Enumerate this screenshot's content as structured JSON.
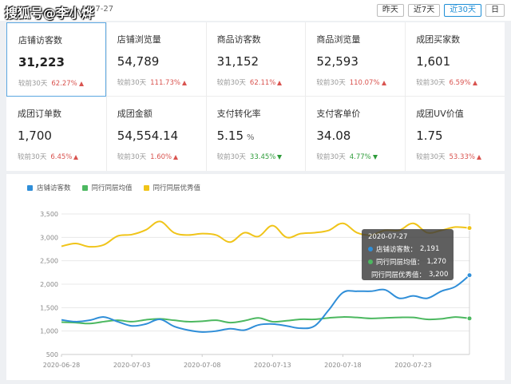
{
  "watermark": "搜狐号@李小烨",
  "header": {
    "date_fragment": "07-27",
    "range_buttons": [
      {
        "label": "昨天",
        "active": false
      },
      {
        "label": "近7天",
        "active": false
      },
      {
        "label": "近30天",
        "active": true
      },
      {
        "label": "日",
        "active": false
      }
    ]
  },
  "metrics": [
    {
      "label": "店铺访客数",
      "value": "31,223",
      "unit": "",
      "cmp_label": "较前30天",
      "pct": "62.27%",
      "dir": "up",
      "selected": true
    },
    {
      "label": "店铺浏览量",
      "value": "54,789",
      "unit": "",
      "cmp_label": "较前30天",
      "pct": "111.73%",
      "dir": "up"
    },
    {
      "label": "商品访客数",
      "value": "31,152",
      "unit": "",
      "cmp_label": "较前30天",
      "pct": "62.11%",
      "dir": "up"
    },
    {
      "label": "商品浏览量",
      "value": "52,593",
      "unit": "",
      "cmp_label": "较前30天",
      "pct": "110.07%",
      "dir": "up"
    },
    {
      "label": "成团买家数",
      "value": "1,601",
      "unit": "",
      "cmp_label": "较前30天",
      "pct": "6.59%",
      "dir": "up"
    },
    {
      "label": "成团订单数",
      "value": "1,700",
      "unit": "",
      "cmp_label": "较前30天",
      "pct": "6.45%",
      "dir": "up"
    },
    {
      "label": "成团金额",
      "value": "54,554.14",
      "unit": "",
      "cmp_label": "较前30天",
      "pct": "1.60%",
      "dir": "up"
    },
    {
      "label": "支付转化率",
      "value": "5.15",
      "unit": "%",
      "cmp_label": "较前30天",
      "pct": "33.45%",
      "dir": "down"
    },
    {
      "label": "支付客单价",
      "value": "34.08",
      "unit": "",
      "cmp_label": "较前30天",
      "pct": "4.77%",
      "dir": "down"
    },
    {
      "label": "成团UV价值",
      "value": "1.75",
      "unit": "",
      "cmp_label": "较前30天",
      "pct": "53.33%",
      "dir": "up"
    }
  ],
  "chart_data": {
    "type": "line",
    "x": [
      "2020-06-28",
      "2020-06-29",
      "2020-06-30",
      "2020-07-01",
      "2020-07-02",
      "2020-07-03",
      "2020-07-04",
      "2020-07-05",
      "2020-07-06",
      "2020-07-07",
      "2020-07-08",
      "2020-07-09",
      "2020-07-10",
      "2020-07-11",
      "2020-07-12",
      "2020-07-13",
      "2020-07-14",
      "2020-07-15",
      "2020-07-16",
      "2020-07-17",
      "2020-07-18",
      "2020-07-19",
      "2020-07-20",
      "2020-07-21",
      "2020-07-22",
      "2020-07-23",
      "2020-07-24",
      "2020-07-25",
      "2020-07-26",
      "2020-07-27"
    ],
    "x_ticks": [
      "2020-06-28",
      "2020-07-03",
      "2020-07-08",
      "2020-07-13",
      "2020-07-18",
      "2020-07-23"
    ],
    "y_ticks": [
      "500",
      "1,000",
      "1,500",
      "2,000",
      "2,500",
      "3,000",
      "3,500"
    ],
    "ylim": [
      500,
      3500
    ],
    "grid": true,
    "legend_position": "top-left",
    "series": [
      {
        "name": "店铺访客数",
        "color": "#2f8ed8",
        "values": [
          1240,
          1200,
          1230,
          1300,
          1200,
          1110,
          1150,
          1250,
          1100,
          1020,
          980,
          1000,
          1050,
          1020,
          1130,
          1150,
          1110,
          1060,
          1110,
          1450,
          1820,
          1850,
          1850,
          1880,
          1700,
          1750,
          1700,
          1850,
          1950,
          2191
        ]
      },
      {
        "name": "同行同层均值",
        "color": "#4cb860",
        "values": [
          1190,
          1180,
          1160,
          1200,
          1230,
          1200,
          1240,
          1260,
          1230,
          1200,
          1210,
          1230,
          1180,
          1220,
          1280,
          1200,
          1220,
          1250,
          1250,
          1280,
          1300,
          1290,
          1270,
          1280,
          1290,
          1290,
          1250,
          1260,
          1300,
          1270
        ]
      },
      {
        "name": "同行同层优秀值",
        "color": "#f0c419",
        "values": [
          2810,
          2870,
          2800,
          2840,
          3030,
          3060,
          3160,
          3340,
          3100,
          3050,
          3080,
          3050,
          2900,
          3100,
          3020,
          3250,
          3000,
          3080,
          3100,
          3150,
          3300,
          3100,
          3050,
          3150,
          3150,
          3300,
          3100,
          3150,
          3220,
          3200
        ]
      }
    ]
  },
  "tooltip": {
    "date": "2020-07-27",
    "rows": [
      {
        "label": "店铺访客数：",
        "value": "2,191",
        "color": "#2f8ed8"
      },
      {
        "label": "同行同层均值：",
        "value": "1,270",
        "color": "#4cb860"
      },
      {
        "label": "同行同层优秀值：",
        "value": "3,200",
        "color": "#f0c419"
      }
    ]
  }
}
